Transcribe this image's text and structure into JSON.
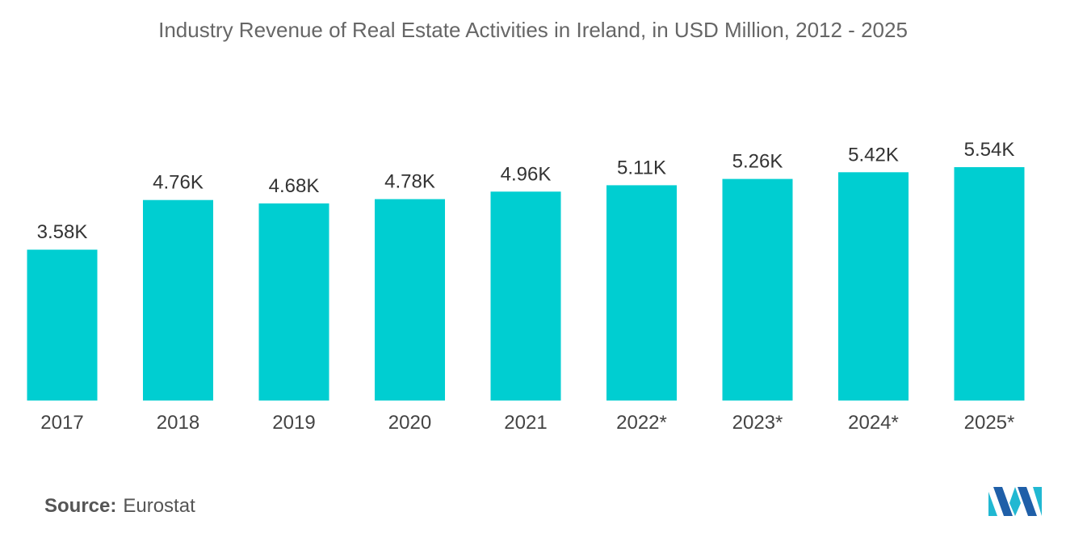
{
  "chart_data": {
    "type": "bar",
    "title": "Industry Revenue of Real Estate Activities in Ireland, in USD Million, 2012 - 2025",
    "categories": [
      "2017",
      "2018",
      "2019",
      "2020",
      "2021",
      "2022*",
      "2023*",
      "2024*",
      "2025*"
    ],
    "values": [
      3580,
      4760,
      4680,
      4780,
      4960,
      5110,
      5260,
      5420,
      5540
    ],
    "value_labels": [
      "3.58K",
      "4.76K",
      "4.68K",
      "4.78K",
      "4.96K",
      "5.11K",
      "5.26K",
      "5.42K",
      "5.54K"
    ],
    "xlabel": "",
    "ylabel": "",
    "ylim": [
      0,
      5540
    ],
    "grid": false,
    "bar_color": "#00CED1"
  },
  "source": {
    "label": "Source:",
    "value": "Eurostat"
  },
  "logo": {
    "icon": "mordor-intelligence-logo",
    "colors": [
      "#1f5fa8",
      "#21b8d2"
    ]
  }
}
